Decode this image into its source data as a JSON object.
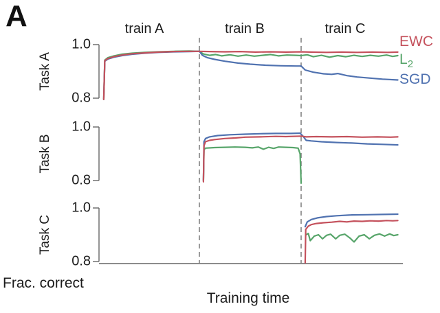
{
  "panel_label": "A",
  "chart_data": {
    "type": "line",
    "title": "",
    "xlabel": "Training time",
    "ylabel": "Frac. correct",
    "grid": false,
    "legend_position": "right-top",
    "x_domain": [
      0,
      3
    ],
    "phase_boundaries": [
      1,
      2
    ],
    "phases": [
      "train A",
      "train B",
      "train C"
    ],
    "legend": {
      "items": [
        {
          "label": "EWC",
          "sub": "",
          "color": "#c4515c"
        },
        {
          "label": "L",
          "sub": "2",
          "color": "#57a56a"
        },
        {
          "label": "SGD",
          "sub": "",
          "color": "#5072b0"
        }
      ]
    },
    "panels": [
      {
        "ylabel": "Task A",
        "ytick_labels": [
          "1.0",
          "0.8"
        ],
        "yticks": [
          1.0,
          0.8
        ],
        "ylim": [
          0.8,
          1.0
        ],
        "series": [
          {
            "name": "L2",
            "color": "#57a56a",
            "points": [
              [
                0.06,
                0.795
              ],
              [
                0.07,
                0.942
              ],
              [
                0.1,
                0.951
              ],
              [
                0.16,
                0.958
              ],
              [
                0.24,
                0.964
              ],
              [
                0.34,
                0.968
              ],
              [
                0.46,
                0.971
              ],
              [
                0.6,
                0.973
              ],
              [
                0.75,
                0.975
              ],
              [
                0.9,
                0.976
              ],
              [
                1.0,
                0.975
              ],
              [
                1.04,
                0.965
              ],
              [
                1.1,
                0.96
              ],
              [
                1.16,
                0.963
              ],
              [
                1.22,
                0.958
              ],
              [
                1.3,
                0.962
              ],
              [
                1.38,
                0.957
              ],
              [
                1.46,
                0.961
              ],
              [
                1.54,
                0.957
              ],
              [
                1.62,
                0.96
              ],
              [
                1.7,
                0.963
              ],
              [
                1.78,
                0.958
              ],
              [
                1.86,
                0.961
              ],
              [
                1.95,
                0.96
              ],
              [
                2.0,
                0.959
              ],
              [
                2.06,
                0.962
              ],
              [
                2.12,
                0.955
              ],
              [
                2.2,
                0.96
              ],
              [
                2.28,
                0.953
              ],
              [
                2.36,
                0.959
              ],
              [
                2.44,
                0.955
              ],
              [
                2.52,
                0.96
              ],
              [
                2.6,
                0.956
              ],
              [
                2.68,
                0.96
              ],
              [
                2.76,
                0.957
              ],
              [
                2.84,
                0.961
              ],
              [
                2.9,
                0.956
              ],
              [
                2.95,
                0.959
              ]
            ]
          },
          {
            "name": "SGD",
            "color": "#5072b0",
            "points": [
              [
                0.06,
                0.795
              ],
              [
                0.07,
                0.938
              ],
              [
                0.1,
                0.946
              ],
              [
                0.16,
                0.953
              ],
              [
                0.24,
                0.959
              ],
              [
                0.34,
                0.964
              ],
              [
                0.46,
                0.968
              ],
              [
                0.6,
                0.971
              ],
              [
                0.75,
                0.973
              ],
              [
                0.9,
                0.974
              ],
              [
                1.0,
                0.975
              ],
              [
                1.03,
                0.96
              ],
              [
                1.08,
                0.951
              ],
              [
                1.15,
                0.945
              ],
              [
                1.25,
                0.938
              ],
              [
                1.38,
                0.931
              ],
              [
                1.5,
                0.927
              ],
              [
                1.65,
                0.923
              ],
              [
                1.8,
                0.921
              ],
              [
                1.95,
                0.92
              ],
              [
                2.0,
                0.92
              ],
              [
                2.04,
                0.905
              ],
              [
                2.12,
                0.897
              ],
              [
                2.22,
                0.891
              ],
              [
                2.3,
                0.889
              ],
              [
                2.36,
                0.892
              ],
              [
                2.45,
                0.884
              ],
              [
                2.55,
                0.879
              ],
              [
                2.68,
                0.875
              ],
              [
                2.8,
                0.871
              ],
              [
                2.95,
                0.868
              ]
            ]
          },
          {
            "name": "EWC",
            "color": "#c4515c",
            "points": [
              [
                0.06,
                0.795
              ],
              [
                0.07,
                0.94
              ],
              [
                0.1,
                0.948
              ],
              [
                0.16,
                0.955
              ],
              [
                0.24,
                0.961
              ],
              [
                0.34,
                0.966
              ],
              [
                0.46,
                0.969
              ],
              [
                0.6,
                0.972
              ],
              [
                0.75,
                0.974
              ],
              [
                0.9,
                0.975
              ],
              [
                1.0,
                0.975
              ],
              [
                1.1,
                0.974
              ],
              [
                1.25,
                0.973
              ],
              [
                1.4,
                0.974
              ],
              [
                1.55,
                0.972
              ],
              [
                1.7,
                0.973
              ],
              [
                1.85,
                0.972
              ],
              [
                2.0,
                0.973
              ],
              [
                2.1,
                0.972
              ],
              [
                2.25,
                0.971
              ],
              [
                2.4,
                0.972
              ],
              [
                2.55,
                0.971
              ],
              [
                2.7,
                0.972
              ],
              [
                2.85,
                0.971
              ],
              [
                2.95,
                0.972
              ]
            ]
          }
        ]
      },
      {
        "ylabel": "Task B",
        "ytick_labels": [
          "1.0",
          "0.8"
        ],
        "yticks": [
          1.0,
          0.8
        ],
        "ylim": [
          0.8,
          1.0
        ],
        "series": [
          {
            "name": "L2",
            "color": "#57a56a",
            "points": [
              [
                1.04,
                0.8
              ],
              [
                1.045,
                0.915
              ],
              [
                1.06,
                0.921
              ],
              [
                1.15,
                0.923
              ],
              [
                1.25,
                0.924
              ],
              [
                1.35,
                0.925
              ],
              [
                1.45,
                0.924
              ],
              [
                1.52,
                0.922
              ],
              [
                1.58,
                0.925
              ],
              [
                1.63,
                0.917
              ],
              [
                1.68,
                0.924
              ],
              [
                1.73,
                0.92
              ],
              [
                1.78,
                0.925
              ],
              [
                1.85,
                0.924
              ],
              [
                1.92,
                0.923
              ],
              [
                1.97,
                0.921
              ],
              [
                1.99,
                0.9
              ],
              [
                2.0,
                0.79
              ]
            ]
          },
          {
            "name": "SGD",
            "color": "#5072b0",
            "points": [
              [
                1.04,
                0.8
              ],
              [
                1.045,
                0.945
              ],
              [
                1.06,
                0.957
              ],
              [
                1.1,
                0.963
              ],
              [
                1.18,
                0.968
              ],
              [
                1.3,
                0.971
              ],
              [
                1.45,
                0.973
              ],
              [
                1.6,
                0.975
              ],
              [
                1.75,
                0.976
              ],
              [
                1.9,
                0.976
              ],
              [
                1.99,
                0.977
              ],
              [
                2.02,
                0.965
              ],
              [
                2.05,
                0.95
              ],
              [
                2.1,
                0.948
              ],
              [
                2.2,
                0.945
              ],
              [
                2.35,
                0.942
              ],
              [
                2.5,
                0.94
              ],
              [
                2.65,
                0.937
              ],
              [
                2.8,
                0.935
              ],
              [
                2.95,
                0.933
              ]
            ]
          },
          {
            "name": "EWC",
            "color": "#c4515c",
            "points": [
              [
                1.04,
                0.795
              ],
              [
                1.045,
                0.93
              ],
              [
                1.06,
                0.945
              ],
              [
                1.1,
                0.95
              ],
              [
                1.15,
                0.953
              ],
              [
                1.25,
                0.957
              ],
              [
                1.35,
                0.959
              ],
              [
                1.45,
                0.962
              ],
              [
                1.6,
                0.963
              ],
              [
                1.75,
                0.965
              ],
              [
                1.85,
                0.964
              ],
              [
                2.0,
                0.966
              ],
              [
                2.05,
                0.963
              ],
              [
                2.15,
                0.964
              ],
              [
                2.3,
                0.963
              ],
              [
                2.45,
                0.964
              ],
              [
                2.6,
                0.962
              ],
              [
                2.75,
                0.963
              ],
              [
                2.88,
                0.962
              ],
              [
                2.95,
                0.963
              ]
            ]
          }
        ]
      },
      {
        "ylabel": "Task C",
        "ytick_labels": [
          "1.0",
          "0.8"
        ],
        "yticks": [
          1.0,
          0.8
        ],
        "ylim": [
          0.8,
          1.0
        ],
        "series": [
          {
            "name": "L2",
            "color": "#57a56a",
            "points": [
              [
                2.05,
                0.9
              ],
              [
                2.07,
                0.905
              ],
              [
                2.09,
                0.878
              ],
              [
                2.13,
                0.895
              ],
              [
                2.17,
                0.9
              ],
              [
                2.21,
                0.885
              ],
              [
                2.25,
                0.898
              ],
              [
                2.29,
                0.902
              ],
              [
                2.34,
                0.885
              ],
              [
                2.38,
                0.898
              ],
              [
                2.43,
                0.902
              ],
              [
                2.48,
                0.888
              ],
              [
                2.52,
                0.873
              ],
              [
                2.57,
                0.895
              ],
              [
                2.62,
                0.9
              ],
              [
                2.67,
                0.885
              ],
              [
                2.72,
                0.898
              ],
              [
                2.77,
                0.903
              ],
              [
                2.82,
                0.895
              ],
              [
                2.87,
                0.903
              ],
              [
                2.91,
                0.897
              ],
              [
                2.95,
                0.9
              ]
            ]
          },
          {
            "name": "SGD",
            "color": "#5072b0",
            "points": [
              [
                2.04,
                0.93
              ],
              [
                2.06,
                0.948
              ],
              [
                2.1,
                0.957
              ],
              [
                2.16,
                0.963
              ],
              [
                2.25,
                0.968
              ],
              [
                2.35,
                0.971
              ],
              [
                2.5,
                0.974
              ],
              [
                2.65,
                0.975
              ],
              [
                2.8,
                0.976
              ],
              [
                2.95,
                0.977
              ]
            ]
          },
          {
            "name": "EWC",
            "color": "#c4515c",
            "points": [
              [
                2.04,
                0.795
              ],
              [
                2.045,
                0.92
              ],
              [
                2.07,
                0.932
              ],
              [
                2.1,
                0.938
              ],
              [
                2.15,
                0.942
              ],
              [
                2.22,
                0.945
              ],
              [
                2.3,
                0.947
              ],
              [
                2.38,
                0.95
              ],
              [
                2.45,
                0.948
              ],
              [
                2.52,
                0.951
              ],
              [
                2.6,
                0.95
              ],
              [
                2.68,
                0.952
              ],
              [
                2.76,
                0.951
              ],
              [
                2.84,
                0.953
              ],
              [
                2.9,
                0.952
              ],
              [
                2.95,
                0.953
              ]
            ]
          }
        ]
      }
    ]
  }
}
